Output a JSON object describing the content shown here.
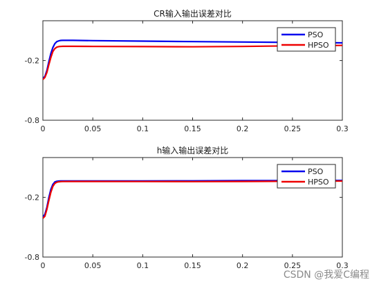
{
  "watermark": "CSDN @我爱C编程",
  "chart_data": [
    {
      "type": "line",
      "title": "CR输入输出误差对比",
      "xlabel": "",
      "ylabel": "",
      "xlim": [
        0,
        0.3
      ],
      "ylim": [
        -0.8,
        0.2
      ],
      "xticks": [
        0,
        0.05,
        0.1,
        0.15,
        0.2,
        0.25,
        0.3
      ],
      "xtick_labels": [
        "0",
        "0.05",
        "0.1",
        "0.15",
        "0.2",
        "0.25",
        "0.3"
      ],
      "yticks": [
        -0.8,
        -0.2
      ],
      "ytick_labels": [
        "-0.8",
        "-0.2"
      ],
      "grid": false,
      "legend_position": "top-right",
      "series": [
        {
          "name": "PSO",
          "color": "#0000ee",
          "x": [
            0,
            0.002,
            0.004,
            0.006,
            0.008,
            0.01,
            0.012,
            0.014,
            0.016,
            0.018,
            0.02,
            0.03,
            0.05,
            0.1,
            0.15,
            0.2,
            0.25,
            0.3
          ],
          "y": [
            -0.38,
            -0.36,
            -0.3,
            -0.21,
            -0.13,
            -0.07,
            -0.03,
            -0.01,
            -0.002,
            0.002,
            0.003,
            0.003,
            0.0,
            -0.005,
            -0.01,
            -0.014,
            -0.018,
            -0.022
          ]
        },
        {
          "name": "HPSO",
          "color": "#ee0000",
          "x": [
            0,
            0.002,
            0.004,
            0.006,
            0.008,
            0.01,
            0.012,
            0.014,
            0.016,
            0.018,
            0.02,
            0.03,
            0.05,
            0.1,
            0.15,
            0.2,
            0.25,
            0.3
          ],
          "y": [
            -0.39,
            -0.37,
            -0.32,
            -0.24,
            -0.17,
            -0.11,
            -0.08,
            -0.065,
            -0.06,
            -0.058,
            -0.057,
            -0.057,
            -0.058,
            -0.06,
            -0.062,
            -0.058,
            -0.052,
            -0.048
          ]
        }
      ]
    },
    {
      "type": "line",
      "title": "h输入输出误差对比",
      "xlabel": "",
      "ylabel": "",
      "xlim": [
        0,
        0.3
      ],
      "ylim": [
        -0.8,
        0.2
      ],
      "xticks": [
        0,
        0.05,
        0.1,
        0.15,
        0.2,
        0.25,
        0.3
      ],
      "xtick_labels": [
        "0",
        "0.05",
        "0.1",
        "0.15",
        "0.2",
        "0.25",
        "0.3"
      ],
      "yticks": [
        -0.8,
        -0.2
      ],
      "ytick_labels": [
        "-0.8",
        "-0.2"
      ],
      "grid": false,
      "legend_position": "top-right",
      "series": [
        {
          "name": "PSO",
          "color": "#0000ee",
          "x": [
            0,
            0.002,
            0.004,
            0.006,
            0.008,
            0.01,
            0.012,
            0.014,
            0.016,
            0.018,
            0.02,
            0.03,
            0.05,
            0.1,
            0.15,
            0.2,
            0.25,
            0.3
          ],
          "y": [
            -0.4,
            -0.37,
            -0.3,
            -0.2,
            -0.12,
            -0.07,
            -0.045,
            -0.038,
            -0.036,
            -0.035,
            -0.035,
            -0.035,
            -0.035,
            -0.035,
            -0.034,
            -0.032,
            -0.031,
            -0.03
          ]
        },
        {
          "name": "HPSO",
          "color": "#ee0000",
          "x": [
            0,
            0.002,
            0.004,
            0.006,
            0.008,
            0.01,
            0.012,
            0.014,
            0.016,
            0.018,
            0.02,
            0.03,
            0.05,
            0.1,
            0.15,
            0.2,
            0.25,
            0.3
          ],
          "y": [
            -0.41,
            -0.39,
            -0.32,
            -0.23,
            -0.15,
            -0.09,
            -0.06,
            -0.048,
            -0.044,
            -0.042,
            -0.041,
            -0.04,
            -0.04,
            -0.041,
            -0.042,
            -0.04,
            -0.038,
            -0.036
          ]
        }
      ]
    }
  ]
}
